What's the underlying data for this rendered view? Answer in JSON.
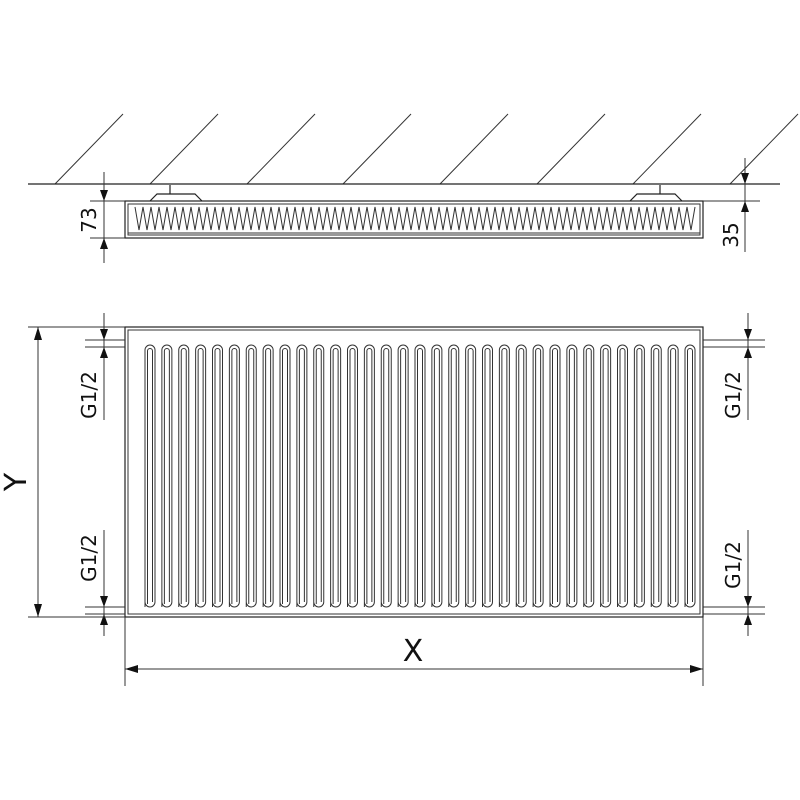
{
  "dimensions": {
    "depth": "73",
    "wall_gap": "35",
    "height": "Y",
    "width": "X",
    "connection_top_left": "G1/2",
    "connection_bottom_left": "G1/2",
    "connection_top_right": "G1/2",
    "connection_bottom_right": "G1/2"
  },
  "fin_count": 33,
  "colors": {
    "line": "#222222",
    "background": "#ffffff"
  }
}
